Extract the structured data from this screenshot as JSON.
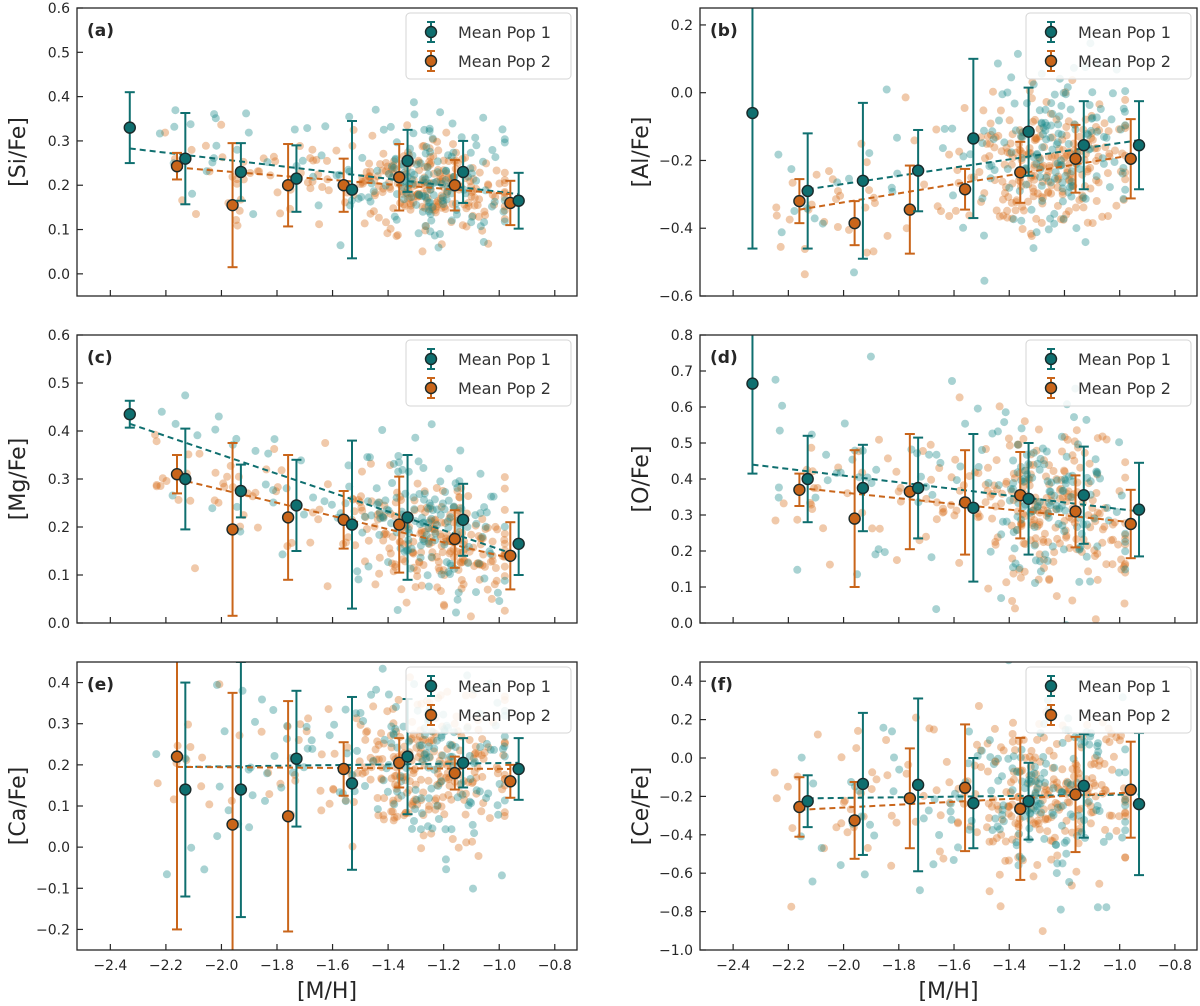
{
  "chart_data": {
    "type": "scatter",
    "legend_location": "top-right",
    "colors": {
      "pop1": "#1a8a8a",
      "pop2": "#d8721f",
      "mean_pop1": "#0f6f6f",
      "mean_pop2": "#c9651a",
      "edge": "#1a2a2a"
    },
    "legend": {
      "pop1": "Mean Pop 1",
      "pop2": "Mean Pop 2"
    },
    "x_axis": {
      "label": "[M/H]",
      "range": [
        -2.52,
        -0.72
      ],
      "ticks": [
        -2.4,
        -2.2,
        -2.0,
        -1.8,
        -1.6,
        -1.4,
        -1.2,
        -1.0,
        -0.8
      ],
      "tick_labels": [
        "−2.4",
        "−2.2",
        "−2.0",
        "−1.8",
        "−1.6",
        "−1.4",
        "−1.2",
        "−1.0",
        "−0.8"
      ]
    },
    "panels": [
      {
        "tag": "(a)",
        "ylabel": "[Si/Fe]",
        "ylim": [
          -0.05,
          0.6
        ],
        "yticks": [
          0.0,
          0.1,
          0.2,
          0.3,
          0.4,
          0.5,
          0.6
        ],
        "ytick_labels": [
          "0.0",
          "0.1",
          "0.2",
          "0.3",
          "0.4",
          "0.5",
          "0.6"
        ],
        "mean_pop1": {
          "x": [
            -2.33,
            -2.13,
            -1.93,
            -1.73,
            -1.53,
            -1.33,
            -1.13,
            -0.93
          ],
          "y": [
            0.33,
            0.26,
            0.23,
            0.215,
            0.19,
            0.255,
            0.23,
            0.165
          ],
          "err": [
            0.08,
            0.103,
            0.065,
            0.075,
            0.155,
            0.07,
            0.07,
            0.063
          ]
        },
        "mean_pop2": {
          "x": [
            -2.16,
            -1.96,
            -1.76,
            -1.56,
            -1.36,
            -1.16,
            -0.96
          ],
          "y": [
            0.243,
            0.155,
            0.2,
            0.2,
            0.218,
            0.2,
            0.16
          ],
          "err": [
            0.03,
            0.14,
            0.093,
            0.06,
            0.075,
            0.057,
            0.05
          ]
        },
        "fit_pop1": {
          "x": [
            -2.33,
            -0.93
          ],
          "y": [
            0.283,
            0.18
          ]
        },
        "fit_pop2": {
          "x": [
            -2.16,
            -0.96
          ],
          "y": [
            0.24,
            0.18
          ]
        },
        "scatter": {
          "center": [
            0.23,
            0.22
          ],
          "spread": [
            0.07,
            0.05
          ]
        }
      },
      {
        "tag": "(b)",
        "ylabel": "[Al/Fe]",
        "ylim": [
          -0.6,
          0.25
        ],
        "yticks": [
          -0.6,
          -0.4,
          -0.2,
          0.0,
          0.2
        ],
        "ytick_labels": [
          "−0.6",
          "−0.4",
          "−0.2",
          "0.0",
          "0.2"
        ],
        "mean_pop1": {
          "x": [
            -2.33,
            -2.13,
            -1.93,
            -1.73,
            -1.53,
            -1.33,
            -1.13,
            -0.93
          ],
          "y": [
            -0.06,
            -0.29,
            -0.26,
            -0.23,
            -0.135,
            -0.115,
            -0.155,
            -0.155
          ],
          "err": [
            0.4,
            0.17,
            0.23,
            0.12,
            0.235,
            0.13,
            0.13,
            0.13
          ]
        },
        "mean_pop2": {
          "x": [
            -2.16,
            -1.96,
            -1.76,
            -1.56,
            -1.36,
            -1.16,
            -0.96
          ],
          "y": [
            -0.32,
            -0.385,
            -0.345,
            -0.285,
            -0.235,
            -0.195,
            -0.195
          ],
          "err": [
            0.065,
            0.065,
            0.13,
            0.06,
            0.09,
            0.1,
            0.117
          ]
        },
        "fit_pop1": {
          "x": [
            -2.13,
            -0.93
          ],
          "y": [
            -0.285,
            -0.14
          ]
        },
        "fit_pop2": {
          "x": [
            -2.16,
            -0.96
          ],
          "y": [
            -0.345,
            -0.185
          ]
        },
        "scatter": {
          "center": [
            -0.2,
            -0.23
          ],
          "spread": [
            0.13,
            0.1
          ]
        }
      },
      {
        "tag": "(c)",
        "ylabel": "[Mg/Fe]",
        "ylim": [
          0.0,
          0.6
        ],
        "yticks": [
          0.0,
          0.1,
          0.2,
          0.3,
          0.4,
          0.5,
          0.6
        ],
        "ytick_labels": [
          "0.0",
          "0.1",
          "0.2",
          "0.3",
          "0.4",
          "0.5",
          "0.6"
        ],
        "mean_pop1": {
          "x": [
            -2.33,
            -2.13,
            -1.93,
            -1.73,
            -1.53,
            -1.33,
            -1.13,
            -0.93
          ],
          "y": [
            0.435,
            0.3,
            0.275,
            0.245,
            0.205,
            0.22,
            0.215,
            0.165
          ],
          "err": [
            0.028,
            0.105,
            0.055,
            0.095,
            0.175,
            0.13,
            0.075,
            0.065
          ]
        },
        "mean_pop2": {
          "x": [
            -2.16,
            -1.96,
            -1.76,
            -1.56,
            -1.36,
            -1.16,
            -0.96
          ],
          "y": [
            0.31,
            0.195,
            0.22,
            0.215,
            0.205,
            0.175,
            0.14
          ],
          "err": [
            0.04,
            0.18,
            0.13,
            0.06,
            0.1,
            0.06,
            0.07
          ]
        },
        "fit_pop1": {
          "x": [
            -2.33,
            -0.93
          ],
          "y": [
            0.415,
            0.14
          ]
        },
        "fit_pop2": {
          "x": [
            -2.16,
            -0.96
          ],
          "y": [
            0.3,
            0.135
          ]
        },
        "scatter": {
          "center": [
            0.26,
            0.22
          ],
          "spread": [
            0.08,
            0.06
          ]
        }
      },
      {
        "tag": "(d)",
        "ylabel": "[O/Fe]",
        "ylim": [
          0.0,
          0.8
        ],
        "yticks": [
          0.0,
          0.1,
          0.2,
          0.3,
          0.4,
          0.5,
          0.6,
          0.7,
          0.8
        ],
        "ytick_labels": [
          "0.0",
          "0.1",
          "0.2",
          "0.3",
          "0.4",
          "0.5",
          "0.6",
          "0.7",
          "0.8"
        ],
        "mean_pop1": {
          "x": [
            -2.33,
            -2.13,
            -1.93,
            -1.73,
            -1.53,
            -1.33,
            -1.13,
            -0.93
          ],
          "y": [
            0.665,
            0.4,
            0.375,
            0.375,
            0.32,
            0.345,
            0.355,
            0.315
          ],
          "err": [
            0.25,
            0.12,
            0.12,
            0.14,
            0.205,
            0.155,
            0.135,
            0.13
          ]
        },
        "mean_pop2": {
          "x": [
            -2.16,
            -1.96,
            -1.76,
            -1.56,
            -1.36,
            -1.16,
            -0.96
          ],
          "y": [
            0.37,
            0.29,
            0.365,
            0.335,
            0.355,
            0.31,
            0.275
          ],
          "err": [
            0.045,
            0.19,
            0.16,
            0.145,
            0.12,
            0.1,
            0.095
          ]
        },
        "fit_pop1": {
          "x": [
            -2.33,
            -0.93
          ],
          "y": [
            0.44,
            0.31
          ]
        },
        "fit_pop2": {
          "x": [
            -2.16,
            -0.96
          ],
          "y": [
            0.375,
            0.28
          ]
        },
        "scatter": {
          "center": [
            0.36,
            0.33
          ],
          "spread": [
            0.13,
            0.11
          ]
        }
      },
      {
        "tag": "(e)",
        "ylabel": "[Ca/Fe]",
        "ylim": [
          -0.25,
          0.45
        ],
        "yticks": [
          -0.2,
          -0.1,
          0.0,
          0.1,
          0.2,
          0.3,
          0.4
        ],
        "ytick_labels": [
          "−0.2",
          "−0.1",
          "0.0",
          "0.1",
          "0.2",
          "0.3",
          "0.4"
        ],
        "mean_pop1": {
          "x": [
            -2.13,
            -1.93,
            -1.73,
            -1.53,
            -1.33,
            -1.13,
            -0.93
          ],
          "y": [
            0.14,
            0.14,
            0.215,
            0.155,
            0.22,
            0.205,
            0.19
          ],
          "err": [
            0.26,
            0.31,
            0.165,
            0.21,
            0.14,
            0.06,
            0.075
          ]
        },
        "mean_pop2": {
          "x": [
            -2.16,
            -1.96,
            -1.76,
            -1.56,
            -1.36,
            -1.16,
            -0.96
          ],
          "y": [
            0.22,
            0.055,
            0.075,
            0.19,
            0.205,
            0.18,
            0.16
          ],
          "err": [
            0.42,
            0.32,
            0.28,
            0.065,
            0.06,
            0.04,
            0.04
          ]
        },
        "fit_pop1": {
          "x": [
            -2.13,
            -0.93
          ],
          "y": [
            0.195,
            0.205
          ]
        },
        "fit_pop2": {
          "x": [
            -2.16,
            -0.96
          ],
          "y": [
            0.195,
            0.19
          ]
        },
        "scatter": {
          "center": [
            0.22,
            0.2
          ],
          "spread": [
            0.11,
            0.09
          ]
        }
      },
      {
        "tag": "(f)",
        "ylabel": "[Ce/Fe]",
        "ylim": [
          -1.0,
          0.5
        ],
        "yticks": [
          -1.0,
          -0.8,
          -0.6,
          -0.4,
          -0.2,
          0.0,
          0.2,
          0.4
        ],
        "ytick_labels": [
          "−1.0",
          "−0.8",
          "−0.6",
          "−0.4",
          "−0.2",
          "0.0",
          "0.2",
          "0.4"
        ],
        "mean_pop1": {
          "x": [
            -2.13,
            -1.93,
            -1.73,
            -1.53,
            -1.33,
            -1.13,
            -0.93
          ],
          "y": [
            -0.225,
            -0.135,
            -0.14,
            -0.235,
            -0.225,
            -0.145,
            -0.24
          ],
          "err": [
            0.135,
            0.37,
            0.45,
            0.235,
            0.2,
            0.27,
            0.37
          ]
        },
        "mean_pop2": {
          "x": [
            -2.16,
            -1.96,
            -1.76,
            -1.56,
            -1.36,
            -1.16,
            -0.96
          ],
          "y": [
            -0.255,
            -0.325,
            -0.21,
            -0.155,
            -0.265,
            -0.19,
            -0.165
          ],
          "err": [
            0.155,
            0.2,
            0.26,
            0.33,
            0.37,
            0.3,
            0.25
          ]
        },
        "fit_pop1": {
          "x": [
            -2.13,
            -0.93
          ],
          "y": [
            -0.21,
            -0.19
          ]
        },
        "fit_pop2": {
          "x": [
            -2.16,
            -0.96
          ],
          "y": [
            -0.27,
            -0.18
          ]
        },
        "scatter": {
          "center": [
            -0.17,
            -0.17
          ],
          "spread": [
            0.22,
            0.2
          ]
        }
      }
    ]
  }
}
